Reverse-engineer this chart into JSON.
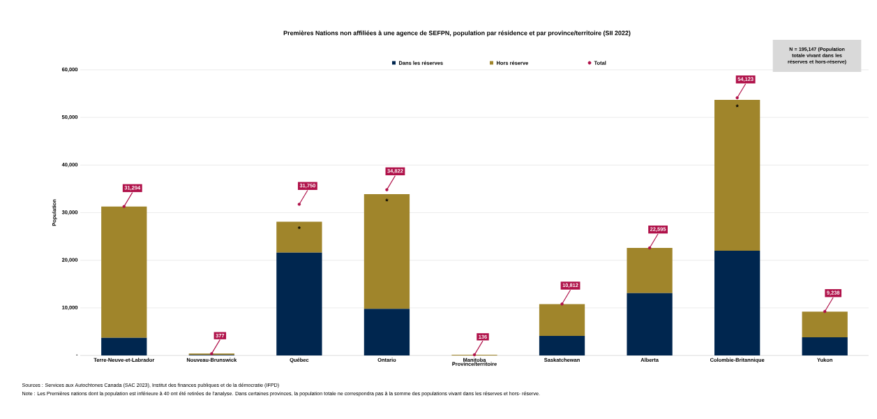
{
  "chart_data": {
    "type": "bar",
    "stacked": true,
    "title": "Premières Nations non affiliées à une agence de SEFPN, population par résidence et par province/territoire (SII 2022)",
    "xlabel": "Province/territoire",
    "ylabel": "Population",
    "categories": [
      "Terre-Neuve-et-Labrador",
      "Nouveau-Brunswick",
      "Québec",
      "Ontario",
      "Manitoba",
      "Saskatchewan",
      "Alberta",
      "Colombie-Britannique",
      "Yukon"
    ],
    "series": [
      {
        "name": "Dans les réserves",
        "color": "#00264f",
        "values": [
          3700,
          100,
          21600,
          9800,
          0,
          4100,
          13100,
          22000,
          3800
        ]
      },
      {
        "name": "Hors réserve",
        "color": "#a0852b",
        "values": [
          27600,
          300,
          6500,
          24100,
          136,
          6700,
          9500,
          31700,
          5400
        ]
      },
      {
        "name": "Total",
        "type": "scatter",
        "marker": "circle",
        "color": "#b0124a",
        "values": [
          31294,
          377,
          31750,
          34822,
          136,
          10812,
          22595,
          54123,
          9238
        ],
        "value_labels": [
          "31,294",
          "377",
          "31,750",
          "34,822",
          "136",
          "10,812",
          "22,595",
          "54,123",
          "9,238"
        ]
      }
    ],
    "ylim": [
      0,
      60000
    ],
    "yticks": [
      {
        "value": 0,
        "label": "-"
      },
      {
        "value": 10000,
        "label": "10,000"
      },
      {
        "value": 20000,
        "label": "20,000"
      },
      {
        "value": 30000,
        "label": "30,000"
      },
      {
        "value": 40000,
        "label": "40,000"
      },
      {
        "value": 50000,
        "label": "50,000"
      },
      {
        "value": 60000,
        "label": "60,000"
      }
    ],
    "grid": "y",
    "legend": "top",
    "annotations": [
      "N = 195,147 (Population totale vivant dans les réserves et hors-réserve)",
      "Sources :  Services aux Autochtones Canada (SAC 2023), Institut des finances publiques et de la démocratie (IFPD)",
      "Note : Les Premières nations dont la population est inférieure à 40 ont été retirées de l’analyse. Dans certaines provinces, la population totale ne correspondra pas à la somme des populations vivant dans les réserves et hors- réserve.",
      {
        "text": "*",
        "x": "Québec",
        "y": 28100
      },
      {
        "text": "*",
        "x": "Ontario",
        "y": 33900
      },
      {
        "text": "*",
        "x": "Colombie-Britannique",
        "y": 53700
      }
    ]
  }
}
